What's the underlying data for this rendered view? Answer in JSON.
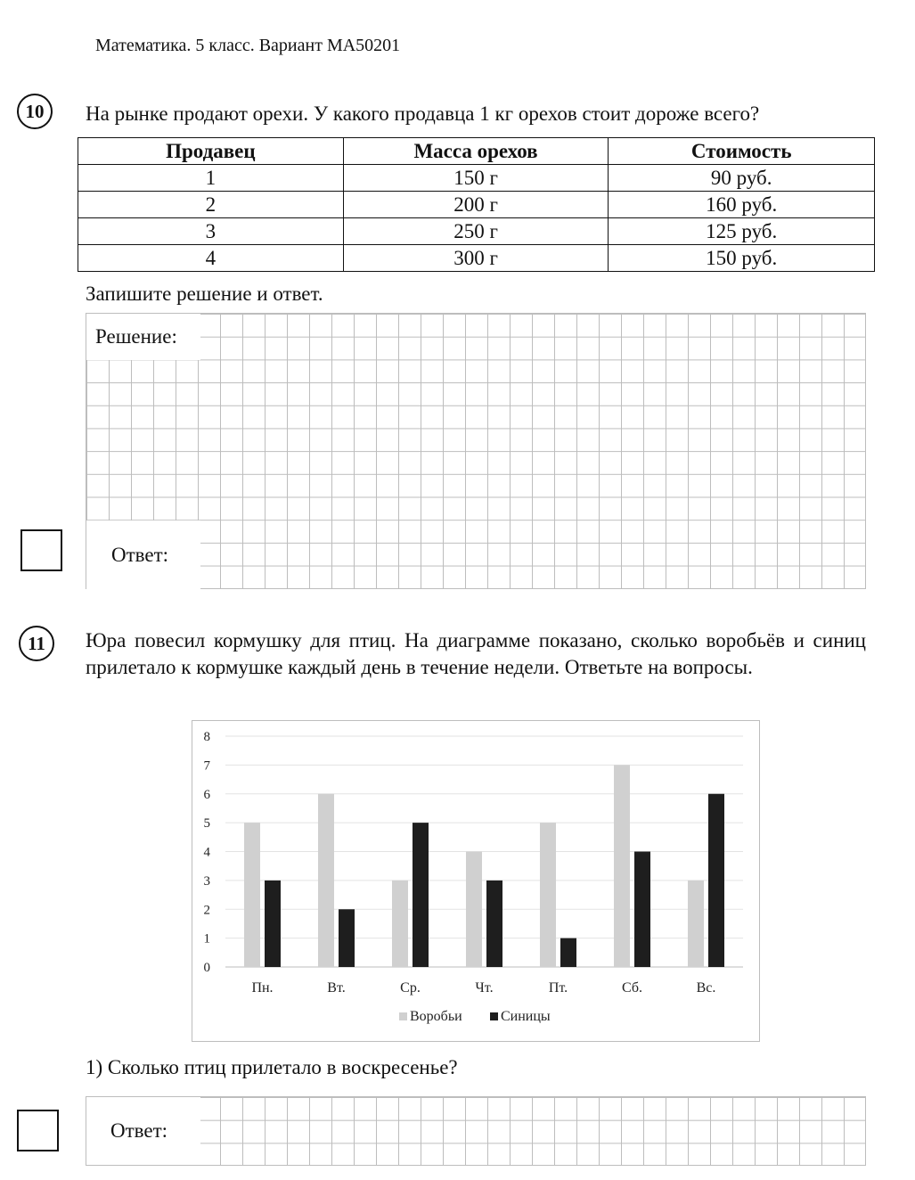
{
  "header": {
    "text": "Математика. 5 класс. Вариант МА50201"
  },
  "q10": {
    "number": "10",
    "text": "На рынке продают орехи. У какого продавца 1 кг орехов стоит дороже всего?",
    "table": {
      "headers": [
        "Продавец",
        "Масса орехов",
        "Стоимость"
      ],
      "rows": [
        [
          "1",
          "150 г",
          "90 руб."
        ],
        [
          "2",
          "200 г",
          "160 руб."
        ],
        [
          "3",
          "250 г",
          "125 руб."
        ],
        [
          "4",
          "300 г",
          "150 руб."
        ]
      ]
    },
    "instruction": "Запишите решение и ответ.",
    "solution_label": "Решение:",
    "answer_label": "Ответ:"
  },
  "q11": {
    "number": "11",
    "text": "Юра повесил кормушку для птиц. На диаграмме показано, сколько воробьёв и синиц прилетало к кормушке каждый день в течение недели. Ответьте на вопросы.",
    "question1": "1) Сколько птиц прилетало в воскресенье?",
    "answer_label": "Ответ:"
  },
  "chart_data": {
    "type": "bar",
    "categories": [
      "Пн.",
      "Вт.",
      "Ср.",
      "Чт.",
      "Пт.",
      "Сб.",
      "Вс."
    ],
    "series": [
      {
        "name": "Воробьи",
        "values": [
          5,
          6,
          3,
          4,
          5,
          7,
          3
        ],
        "color": "#d0d0d0"
      },
      {
        "name": "Синицы",
        "values": [
          3,
          2,
          5,
          3,
          1,
          4,
          6
        ],
        "color": "#1e1e1e"
      }
    ],
    "ylim": [
      0,
      8
    ],
    "yticks": [
      0,
      1,
      2,
      3,
      4,
      5,
      6,
      7,
      8
    ],
    "grid": true,
    "legend": "bottom"
  }
}
